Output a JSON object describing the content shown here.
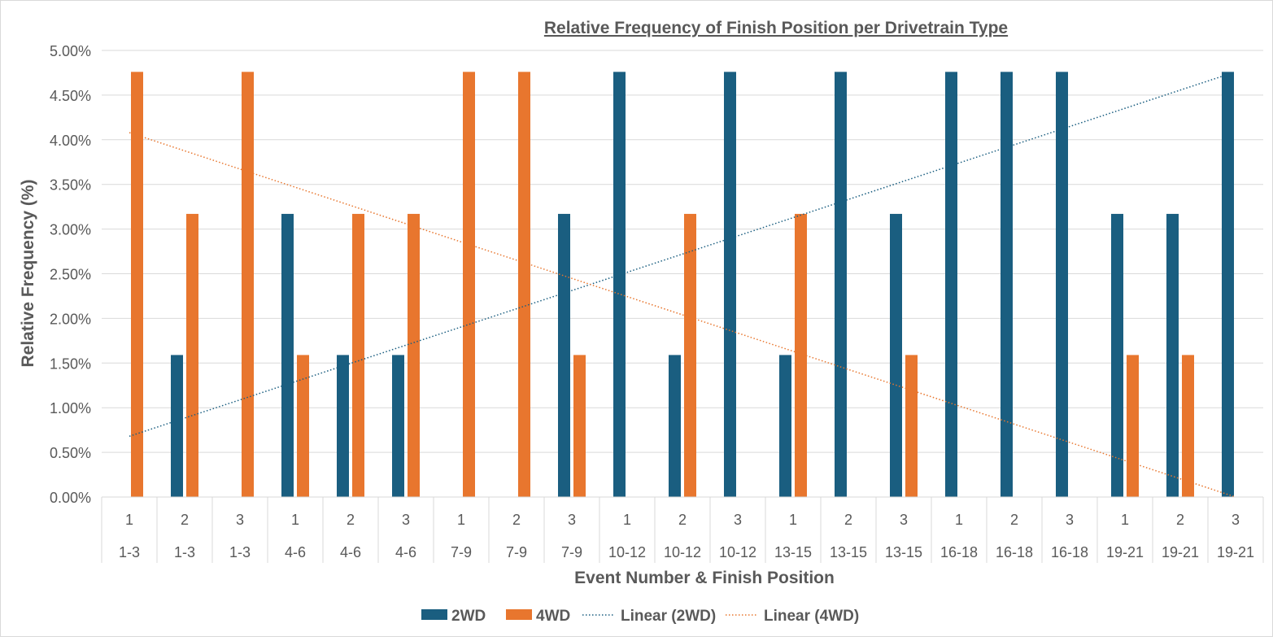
{
  "chart_data": {
    "type": "bar",
    "title": "Relative Frequency of Finish Position per Drivetrain Type",
    "xlabel": "Event Number & Finish Position",
    "ylabel": "Relative Frequency (%)",
    "ylim": [
      0,
      5
    ],
    "yticks": [
      "0.00%",
      "0.50%",
      "1.00%",
      "1.50%",
      "2.00%",
      "2.50%",
      "3.00%",
      "3.50%",
      "4.00%",
      "4.50%",
      "5.00%"
    ],
    "categories": [
      {
        "position": "1",
        "event": "1-3"
      },
      {
        "position": "2",
        "event": "1-3"
      },
      {
        "position": "3",
        "event": "1-3"
      },
      {
        "position": "1",
        "event": "4-6"
      },
      {
        "position": "2",
        "event": "4-6"
      },
      {
        "position": "3",
        "event": "4-6"
      },
      {
        "position": "1",
        "event": "7-9"
      },
      {
        "position": "2",
        "event": "7-9"
      },
      {
        "position": "3",
        "event": "7-9"
      },
      {
        "position": "1",
        "event": "10-12"
      },
      {
        "position": "2",
        "event": "10-12"
      },
      {
        "position": "3",
        "event": "10-12"
      },
      {
        "position": "1",
        "event": "13-15"
      },
      {
        "position": "2",
        "event": "13-15"
      },
      {
        "position": "3",
        "event": "13-15"
      },
      {
        "position": "1",
        "event": "16-18"
      },
      {
        "position": "2",
        "event": "16-18"
      },
      {
        "position": "3",
        "event": "16-18"
      },
      {
        "position": "1",
        "event": "19-21"
      },
      {
        "position": "2",
        "event": "19-21"
      },
      {
        "position": "3",
        "event": "19-21"
      }
    ],
    "series": [
      {
        "name": "2WD",
        "color": "#1a5e80",
        "values": [
          0,
          1.59,
          0,
          3.17,
          1.59,
          1.59,
          0,
          0,
          3.17,
          4.76,
          1.59,
          4.76,
          1.59,
          4.76,
          3.17,
          4.76,
          4.76,
          4.76,
          3.17,
          3.17,
          4.76
        ]
      },
      {
        "name": "4WD",
        "color": "#e8762e",
        "values": [
          4.76,
          3.17,
          4.76,
          1.59,
          3.17,
          3.17,
          4.76,
          4.76,
          1.59,
          0,
          3.17,
          0,
          3.17,
          0,
          1.59,
          0,
          0,
          0,
          1.59,
          1.59,
          0
        ]
      }
    ],
    "trendlines": [
      {
        "name": "Linear (2WD)",
        "series": "2WD",
        "type": "linear",
        "color": "#1a5e80",
        "start": 0.68,
        "end": 4.76
      },
      {
        "name": "Linear (4WD)",
        "series": "4WD",
        "type": "linear",
        "color": "#e8762e",
        "start": 4.08,
        "end": 0.0
      }
    ],
    "grid": true,
    "legend": "bottom"
  }
}
